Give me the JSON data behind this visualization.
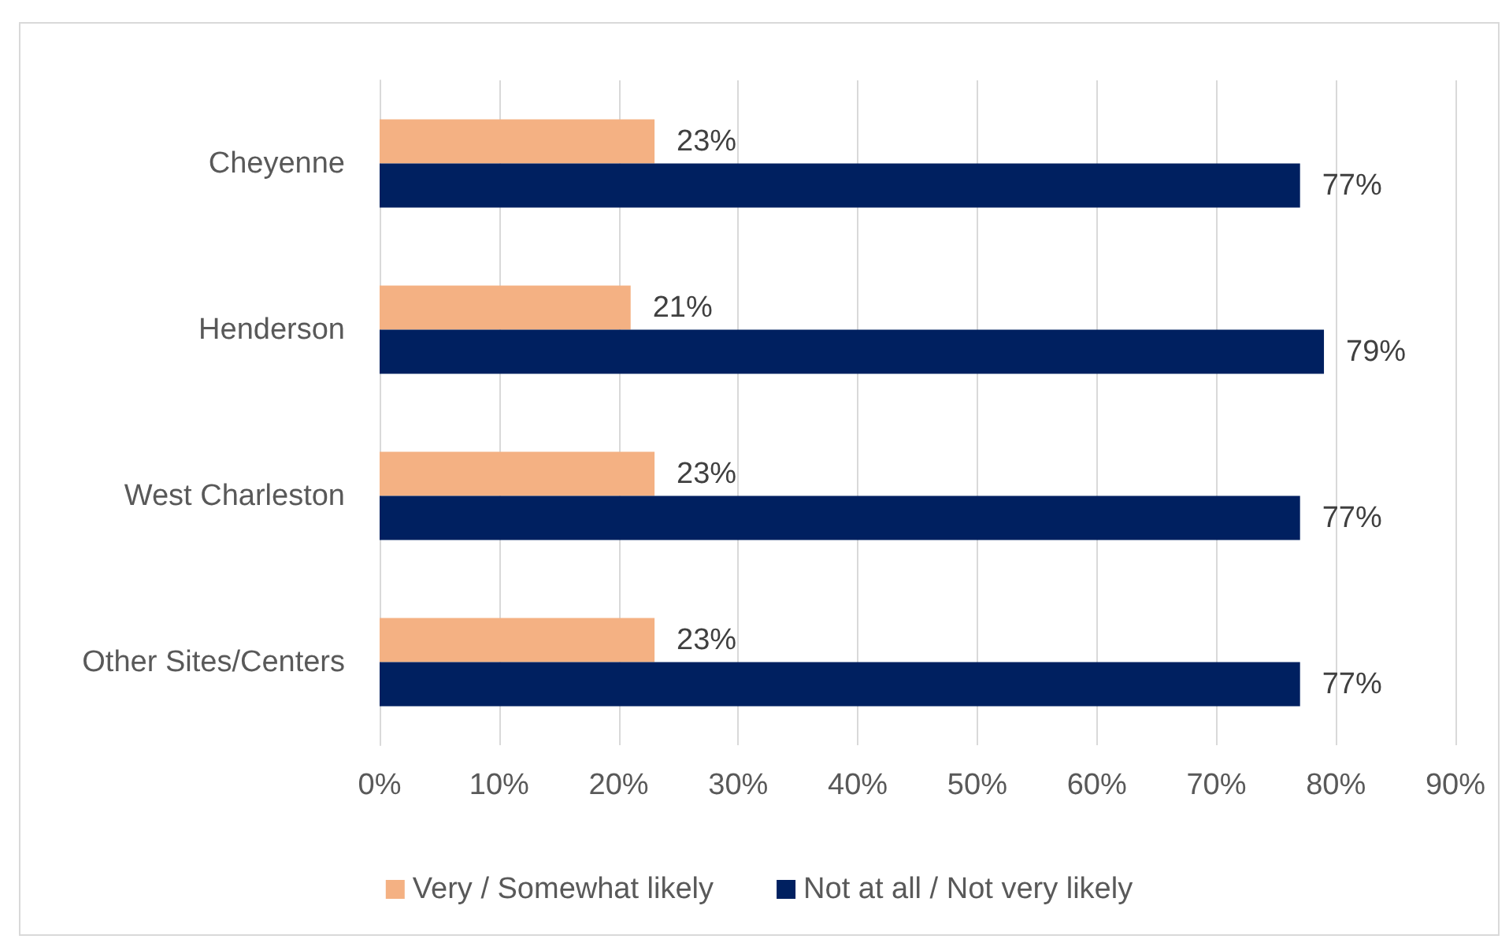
{
  "chart_data": {
    "type": "bar",
    "orientation": "horizontal",
    "categories": [
      "Cheyenne",
      "Henderson",
      "West Charleston",
      "Other Sites/Centers"
    ],
    "series": [
      {
        "name": "Very / Somewhat likely",
        "color": "#f4b183",
        "values": [
          23,
          21,
          23,
          23
        ],
        "value_labels": [
          "23%",
          "21%",
          "23%",
          "23%"
        ]
      },
      {
        "name": "Not at all / Not very likely",
        "color": "#002060",
        "values": [
          77,
          79,
          77,
          77
        ],
        "value_labels": [
          "77%",
          "79%",
          "77%",
          "77%"
        ]
      }
    ],
    "xlim": [
      0,
      90
    ],
    "xticks": [
      {
        "value": 0,
        "label": "0%"
      },
      {
        "value": 10,
        "label": "10%"
      },
      {
        "value": 20,
        "label": "20%"
      },
      {
        "value": 30,
        "label": "30%"
      },
      {
        "value": 40,
        "label": "40%"
      },
      {
        "value": 50,
        "label": "50%"
      },
      {
        "value": 60,
        "label": "60%"
      },
      {
        "value": 70,
        "label": "70%"
      },
      {
        "value": 80,
        "label": "80%"
      },
      {
        "value": 90,
        "label": "90%"
      }
    ],
    "grid": "x",
    "legend": "bottom"
  }
}
